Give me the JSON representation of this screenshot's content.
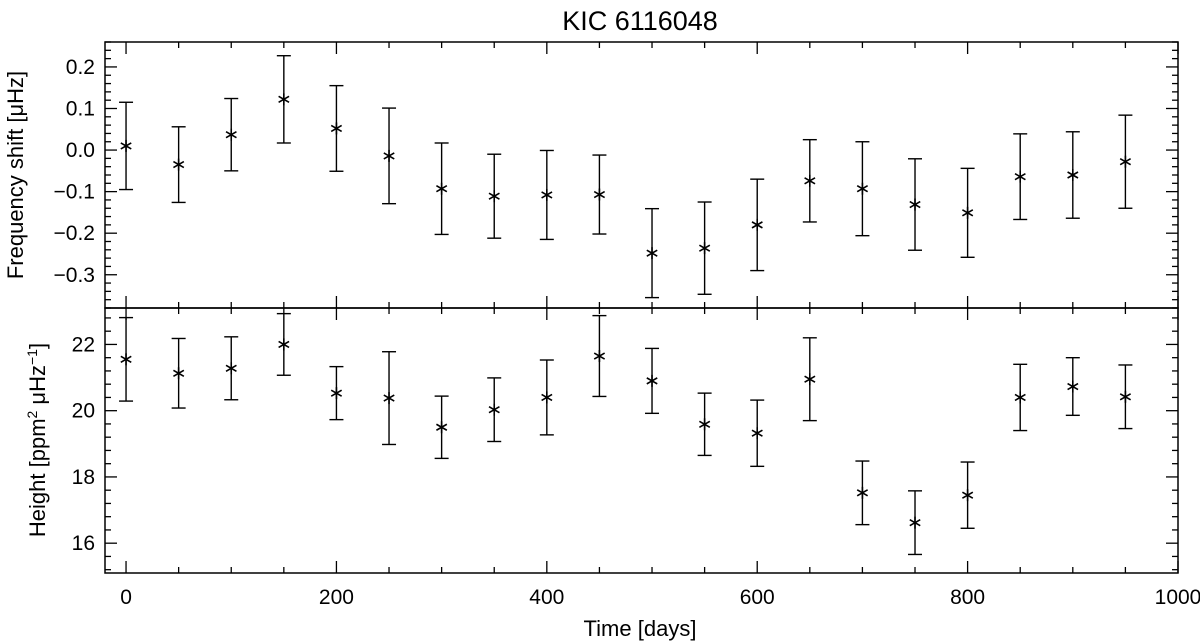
{
  "title": "KIC 6116048",
  "colors": {
    "foreground": "#000000",
    "background": "#ffffff"
  },
  "chart_data": [
    {
      "type": "scatter",
      "panel": "top",
      "marker": "asterisk",
      "error_bars": true,
      "title": "KIC 6116048",
      "xlabel": "",
      "ylabel": "Frequency shift [μHz]",
      "xlim": [
        -20,
        1000
      ],
      "ylim": [
        -0.38,
        0.26
      ],
      "x_ticks": [],
      "y_ticks": [
        {
          "value": -0.3,
          "label": "−0.3"
        },
        {
          "value": -0.2,
          "label": "−0.2"
        },
        {
          "value": -0.1,
          "label": "−0.1"
        },
        {
          "value": 0.0,
          "label": "0.0"
        },
        {
          "value": 0.1,
          "label": "0.1"
        },
        {
          "value": 0.2,
          "label": "0.2"
        }
      ],
      "series": [
        {
          "x": [
            0,
            50,
            100,
            150,
            200,
            250,
            300,
            350,
            400,
            450,
            500,
            550,
            600,
            650,
            700,
            750,
            800,
            850,
            900,
            950
          ],
          "y": [
            0.01,
            -0.035,
            0.037,
            0.122,
            0.052,
            -0.014,
            -0.093,
            -0.111,
            -0.108,
            -0.107,
            -0.248,
            -0.236,
            -0.18,
            -0.074,
            -0.093,
            -0.131,
            -0.151,
            -0.064,
            -0.06,
            -0.028
          ],
          "yerr": [
            0.105,
            0.091,
            0.087,
            0.105,
            0.103,
            0.115,
            0.11,
            0.101,
            0.107,
            0.095,
            0.107,
            0.111,
            0.11,
            0.099,
            0.113,
            0.11,
            0.107,
            0.103,
            0.104,
            0.112
          ]
        }
      ]
    },
    {
      "type": "scatter",
      "panel": "bottom",
      "marker": "asterisk",
      "error_bars": true,
      "xlabel": "Time [days]",
      "ylabel": "Height [ppm² μHz⁻¹]",
      "xlim": [
        -20,
        1000
      ],
      "ylim": [
        15.1,
        23.1
      ],
      "x_ticks": [
        {
          "value": 0,
          "label": "0"
        },
        {
          "value": 200,
          "label": "200"
        },
        {
          "value": 400,
          "label": "400"
        },
        {
          "value": 600,
          "label": "600"
        },
        {
          "value": 800,
          "label": "800"
        },
        {
          "value": 1000,
          "label": "1000"
        }
      ],
      "y_ticks": [
        {
          "value": 16,
          "label": "16"
        },
        {
          "value": 18,
          "label": "18"
        },
        {
          "value": 20,
          "label": "20"
        },
        {
          "value": 22,
          "label": "22"
        }
      ],
      "series": [
        {
          "x": [
            0,
            50,
            100,
            150,
            200,
            250,
            300,
            350,
            400,
            450,
            500,
            550,
            600,
            650,
            700,
            750,
            800,
            850,
            900,
            950
          ],
          "y": [
            21.55,
            21.13,
            21.28,
            22.0,
            20.53,
            20.38,
            19.5,
            20.03,
            20.4,
            21.65,
            20.9,
            19.59,
            19.32,
            20.95,
            17.52,
            16.62,
            17.45,
            20.4,
            20.73,
            20.42
          ],
          "yerr": [
            1.26,
            1.05,
            0.95,
            0.93,
            0.8,
            1.4,
            0.94,
            0.96,
            1.13,
            1.22,
            0.98,
            0.94,
            1.0,
            1.25,
            0.96,
            0.96,
            1.0,
            1.0,
            0.87,
            0.96
          ]
        }
      ]
    }
  ]
}
